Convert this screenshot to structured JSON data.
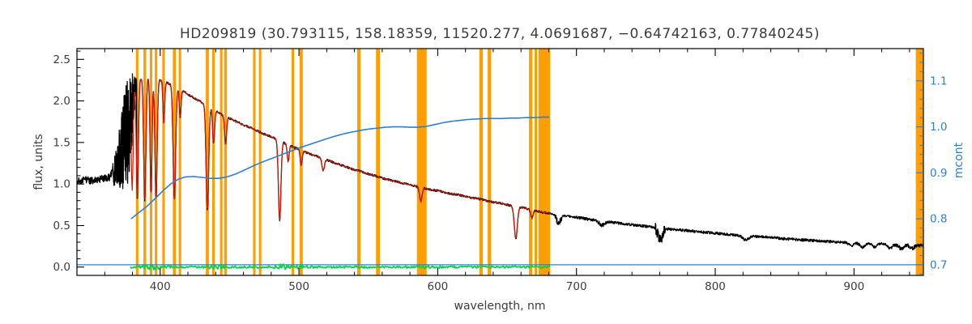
{
  "chart_data": {
    "type": "line",
    "title": "HD209819  (30.793115, 158.18359, 11520.277, 4.0691687, −0.64742163, 0.77840245)",
    "star_id": "HD209819",
    "header_values": [
      30.793115,
      158.18359,
      11520.277,
      4.0691687,
      -0.64742163,
      0.77840245
    ],
    "xlabel": "wavelength, nm",
    "ylabel_left": "flux, units",
    "ylabel_right": "mcont",
    "xlim": [
      340,
      950
    ],
    "ylim_left": [
      -0.1,
      2.63
    ],
    "ylim_right": [
      0.677,
      1.17
    ],
    "x_major_ticks": [
      400,
      500,
      600,
      700,
      800,
      900
    ],
    "x_minor_step": 20,
    "y_left_major_ticks": [
      0.0,
      0.5,
      1.0,
      1.5,
      2.0,
      2.5
    ],
    "y_left_minor_step": 0.1,
    "y_right_major_ticks": [
      0.7,
      0.8,
      0.9,
      1.0,
      1.1
    ],
    "y_right_minor_step": 0.02,
    "grid": false,
    "legend": "none",
    "colors": {
      "spectrum": "#000000",
      "fit": "#dc1400",
      "mcont": "#2e7fd2",
      "residual": "#00d44a",
      "mask": "#ff9e00",
      "axis": "#000000",
      "text": "#3c3c3c"
    },
    "masks": [
      [
        382.5,
        384.3
      ],
      [
        387.9,
        389.9
      ],
      [
        392.5,
        394.3
      ],
      [
        396.1,
        397.9
      ],
      [
        401.5,
        403.3
      ],
      [
        409.1,
        411.3
      ],
      [
        413.3,
        415.1
      ],
      [
        432.9,
        435.1
      ],
      [
        437.5,
        439.3
      ],
      [
        443.1,
        444.9
      ],
      [
        446.1,
        448.1
      ],
      [
        466.9,
        468.7
      ],
      [
        471.1,
        472.9
      ],
      [
        494.7,
        496.5
      ],
      [
        500.5,
        502.7
      ],
      [
        542.0,
        544.4
      ],
      [
        555.5,
        558.3
      ],
      [
        585.0,
        592.0
      ],
      [
        630.0,
        632.5
      ],
      [
        636.0,
        638.5
      ],
      [
        665.8,
        668.2
      ],
      [
        669.8,
        671.6
      ],
      [
        672.6,
        681.0
      ],
      [
        944.5,
        950.0
      ]
    ],
    "fit_range": [
      379,
      681
    ],
    "baseline": {
      "value": 0.7,
      "range": [
        340,
        950
      ]
    },
    "residual": {
      "range": [
        378.5,
        681
      ],
      "base_amp": 0.012,
      "bumps": [
        [
          395,
          5,
          0.02
        ],
        [
          440,
          4,
          0.02
        ],
        [
          487,
          3,
          0.027
        ],
        [
          502,
          3,
          0.015
        ],
        [
          590,
          4,
          0.008
        ]
      ]
    },
    "mcont_anchors": [
      [
        379,
        0.8
      ],
      [
        384,
        0.812
      ],
      [
        390,
        0.826
      ],
      [
        396,
        0.843
      ],
      [
        402,
        0.861
      ],
      [
        408,
        0.877
      ],
      [
        413,
        0.886
      ],
      [
        418,
        0.891
      ],
      [
        424,
        0.892
      ],
      [
        430,
        0.89
      ],
      [
        436,
        0.888
      ],
      [
        442,
        0.888
      ],
      [
        448,
        0.891
      ],
      [
        454,
        0.897
      ],
      [
        460,
        0.905
      ],
      [
        467,
        0.915
      ],
      [
        474,
        0.924
      ],
      [
        481,
        0.932
      ],
      [
        488,
        0.94
      ],
      [
        495,
        0.948
      ],
      [
        502,
        0.956
      ],
      [
        509,
        0.963
      ],
      [
        516,
        0.97
      ],
      [
        523,
        0.977
      ],
      [
        530,
        0.983
      ],
      [
        537,
        0.988
      ],
      [
        544,
        0.992
      ],
      [
        550,
        0.995
      ],
      [
        556,
        0.997
      ],
      [
        562,
        0.999
      ],
      [
        568,
        1.0
      ],
      [
        574,
        1.0
      ],
      [
        580,
        0.999
      ],
      [
        586,
        0.999
      ],
      [
        592,
        1.001
      ],
      [
        598,
        1.005
      ],
      [
        604,
        1.009
      ],
      [
        610,
        1.012
      ],
      [
        616,
        1.014
      ],
      [
        622,
        1.016
      ],
      [
        628,
        1.017
      ],
      [
        634,
        1.018
      ],
      [
        640,
        1.018
      ],
      [
        646,
        1.018
      ],
      [
        652,
        1.019
      ],
      [
        658,
        1.019
      ],
      [
        664,
        1.02
      ],
      [
        670,
        1.02
      ],
      [
        675,
        1.021
      ],
      [
        681,
        1.021
      ]
    ],
    "model": {
      "blob_start": 366,
      "blob_end": 383,
      "blob_mid": [
        [
          366,
          1.1
        ],
        [
          369,
          1.22
        ],
        [
          372,
          1.38
        ],
        [
          374,
          1.5
        ],
        [
          376,
          1.58
        ],
        [
          378,
          1.7
        ],
        [
          380,
          1.95
        ],
        [
          382,
          2.12
        ],
        [
          383,
          2.2
        ]
      ],
      "blob_amp": [
        [
          366,
          0.12
        ],
        [
          369,
          0.28
        ],
        [
          372,
          0.45
        ],
        [
          374,
          0.58
        ],
        [
          376,
          0.66
        ],
        [
          378,
          0.62
        ],
        [
          380,
          0.42
        ],
        [
          382,
          0.18
        ],
        [
          383,
          0.05
        ]
      ],
      "noise": {
        "flat_amp": 0.045,
        "smooth_amp": 0.012,
        "red_amp": 0.016,
        "telluric": [
          [
            760.3,
            3.5,
            0.05
          ],
          [
            687.0,
            2.5,
            0.022
          ],
          [
            718.5,
            3.0,
            0.008
          ],
          [
            940.0,
            12.0,
            0.006
          ]
        ]
      },
      "continuum": [
        [
          340,
          1.04
        ],
        [
          346,
          1.05
        ],
        [
          352,
          1.04
        ],
        [
          358,
          1.06
        ],
        [
          364,
          1.08
        ],
        [
          368,
          1.35
        ],
        [
          372,
          1.7
        ],
        [
          376,
          2.0
        ],
        [
          379,
          2.15
        ],
        [
          382,
          2.24
        ],
        [
          386,
          2.27
        ],
        [
          390,
          2.29
        ],
        [
          394,
          2.28
        ],
        [
          398,
          2.26
        ],
        [
          402,
          2.24
        ],
        [
          406,
          2.21
        ],
        [
          410,
          2.18
        ],
        [
          415,
          2.13
        ],
        [
          420,
          2.08
        ],
        [
          425,
          2.03
        ],
        [
          430,
          1.98
        ],
        [
          435,
          1.93
        ],
        [
          440,
          1.88
        ],
        [
          445,
          1.83
        ],
        [
          450,
          1.79
        ],
        [
          455,
          1.75
        ],
        [
          460,
          1.71
        ],
        [
          465,
          1.68
        ],
        [
          470,
          1.64
        ],
        [
          475,
          1.6
        ],
        [
          480,
          1.57
        ],
        [
          485,
          1.53
        ],
        [
          490,
          1.49
        ],
        [
          495,
          1.45
        ],
        [
          500,
          1.42
        ],
        [
          505,
          1.38
        ],
        [
          510,
          1.35
        ],
        [
          515,
          1.32
        ],
        [
          520,
          1.29
        ],
        [
          525,
          1.26
        ],
        [
          530,
          1.23
        ],
        [
          535,
          1.2
        ],
        [
          540,
          1.17
        ],
        [
          545,
          1.15
        ],
        [
          550,
          1.12
        ],
        [
          555,
          1.1
        ],
        [
          560,
          1.07
        ],
        [
          565,
          1.05
        ],
        [
          570,
          1.03
        ],
        [
          575,
          1.01
        ],
        [
          580,
          0.99
        ],
        [
          585,
          0.97
        ],
        [
          590,
          0.95
        ],
        [
          595,
          0.93
        ],
        [
          600,
          0.92
        ],
        [
          605,
          0.9
        ],
        [
          610,
          0.88
        ],
        [
          615,
          0.87
        ],
        [
          620,
          0.85
        ],
        [
          625,
          0.83
        ],
        [
          630,
          0.82
        ],
        [
          635,
          0.8
        ],
        [
          640,
          0.78
        ],
        [
          645,
          0.77
        ],
        [
          650,
          0.75
        ],
        [
          655,
          0.73
        ],
        [
          660,
          0.72
        ],
        [
          665,
          0.7
        ],
        [
          670,
          0.68
        ],
        [
          675,
          0.66
        ],
        [
          680,
          0.65
        ],
        [
          690,
          0.62
        ],
        [
          700,
          0.6
        ],
        [
          710,
          0.57
        ],
        [
          720,
          0.55
        ],
        [
          730,
          0.53
        ],
        [
          740,
          0.51
        ],
        [
          750,
          0.49
        ],
        [
          760,
          0.47
        ],
        [
          770,
          0.45
        ],
        [
          780,
          0.44
        ],
        [
          790,
          0.42
        ],
        [
          800,
          0.41
        ],
        [
          810,
          0.39
        ],
        [
          820,
          0.38
        ],
        [
          830,
          0.37
        ],
        [
          840,
          0.36
        ],
        [
          850,
          0.34
        ],
        [
          860,
          0.33
        ],
        [
          870,
          0.32
        ],
        [
          880,
          0.31
        ],
        [
          890,
          0.3
        ],
        [
          900,
          0.29
        ],
        [
          910,
          0.285
        ],
        [
          920,
          0.28
        ],
        [
          930,
          0.27
        ],
        [
          940,
          0.265
        ],
        [
          950,
          0.26
        ]
      ],
      "absorption_lines": [
        [
          379.8,
          1.25,
          0.7
        ],
        [
          383.5,
          1.42,
          0.75
        ],
        [
          388.9,
          1.48,
          0.8
        ],
        [
          393.4,
          1.38,
          0.7
        ],
        [
          397.0,
          1.42,
          0.8
        ],
        [
          402.6,
          0.5,
          0.6
        ],
        [
          410.2,
          1.36,
          0.9
        ],
        [
          414.4,
          0.34,
          0.6
        ],
        [
          434.0,
          1.26,
          0.9
        ],
        [
          438.5,
          0.4,
          0.7
        ],
        [
          447.1,
          0.34,
          0.7
        ],
        [
          486.1,
          0.96,
          0.9
        ],
        [
          492.2,
          0.2,
          0.7
        ],
        [
          501.6,
          0.18,
          0.7
        ],
        [
          517.5,
          0.14,
          0.9
        ],
        [
          587.8,
          0.17,
          0.9
        ],
        [
          656.3,
          0.38,
          1.1
        ],
        [
          667.8,
          0.1,
          0.8
        ],
        [
          687.0,
          0.1,
          1.4
        ],
        [
          718.5,
          0.05,
          2.0
        ],
        [
          760.4,
          0.15,
          1.6
        ],
        [
          822.0,
          0.05,
          2.2
        ],
        [
          898.0,
          0.04,
          1.5
        ],
        [
          906.0,
          0.05,
          1.6
        ],
        [
          915.0,
          0.04,
          1.5
        ],
        [
          926.0,
          0.05,
          1.6
        ],
        [
          934.0,
          0.05,
          1.5
        ],
        [
          942.0,
          0.04,
          1.5
        ]
      ]
    }
  }
}
